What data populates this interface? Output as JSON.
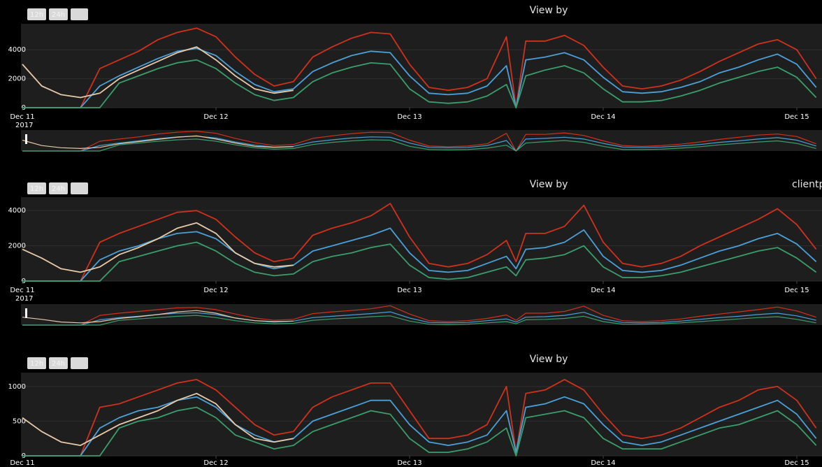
{
  "chart_data": [
    {
      "type": "line",
      "title": "View by",
      "range_buttons": [
        "12h",
        "24h"
      ],
      "year_label": "2017",
      "range_slider": true,
      "x": [
        11,
        11.1,
        11.2,
        11.3,
        11.4,
        11.5,
        11.6,
        11.7,
        11.8,
        11.9,
        12,
        12.1,
        12.2,
        12.3,
        12.4,
        12.5,
        12.6,
        12.7,
        12.8,
        12.9,
        13,
        13.1,
        13.2,
        13.3,
        13.4,
        13.5,
        13.55,
        13.6,
        13.7,
        13.8,
        13.9,
        14,
        14.1,
        14.2,
        14.3,
        14.4,
        14.5,
        14.6,
        14.7,
        14.8,
        14.9,
        15,
        15.1
      ],
      "xlim": [
        11,
        15.13
      ],
      "xticks": [
        {
          "value": 11,
          "label": "Dec 11"
        },
        {
          "value": 12,
          "label": "Dec 12"
        },
        {
          "value": 13,
          "label": "Dec 13"
        },
        {
          "value": 14,
          "label": "Dec 14"
        },
        {
          "value": 15,
          "label": "Dec 15"
        }
      ],
      "ylim": [
        0,
        5800
      ],
      "yticks": [
        0,
        2000,
        4000
      ],
      "series": [
        {
          "color": "#d0311c",
          "values": [
            0,
            0,
            0,
            0,
            2700,
            3300,
            3900,
            4700,
            5200,
            5500,
            4900,
            3500,
            2300,
            1500,
            1800,
            3500,
            4200,
            4800,
            5200,
            5100,
            3000,
            1400,
            1200,
            1400,
            2000,
            4900,
            0,
            4600,
            4600,
            5000,
            4300,
            2800,
            1500,
            1300,
            1500,
            1900,
            2500,
            3200,
            3800,
            4400,
            4700,
            4000,
            2000
          ]
        },
        {
          "color": "#4aa0d8",
          "values": [
            0,
            0,
            0,
            0,
            1500,
            2200,
            2800,
            3400,
            3900,
            4100,
            3600,
            2500,
            1600,
            1100,
            1300,
            2500,
            3100,
            3600,
            3900,
            3800,
            2200,
            1000,
            900,
            1000,
            1500,
            2900,
            0,
            3300,
            3500,
            3800,
            3300,
            2100,
            1100,
            1000,
            1100,
            1400,
            1800,
            2400,
            2800,
            3300,
            3700,
            3000,
            1400
          ]
        },
        {
          "color": "#3a9e6c",
          "values": [
            0,
            0,
            0,
            0,
            0,
            1700,
            2200,
            2700,
            3100,
            3300,
            2700,
            1700,
            900,
            500,
            700,
            1800,
            2400,
            2800,
            3100,
            3000,
            1300,
            400,
            300,
            400,
            800,
            1600,
            0,
            2200,
            2600,
            2900,
            2400,
            1300,
            400,
            400,
            500,
            800,
            1200,
            1700,
            2100,
            2500,
            2800,
            2100,
            700
          ]
        },
        {
          "color": "#e8c9a8",
          "values": [
            3000,
            1500,
            900,
            700,
            1000,
            2000,
            2600,
            3200,
            3800,
            4200,
            3300,
            2200,
            1300,
            1000,
            1200,
            null,
            null,
            null,
            null,
            null,
            null,
            null,
            null,
            null,
            null,
            null,
            null,
            null,
            null,
            null,
            null,
            null,
            null,
            null,
            null,
            null,
            null,
            null,
            null,
            null,
            null,
            null,
            null
          ]
        }
      ]
    },
    {
      "type": "line",
      "title": "View by",
      "annotation": "clientp",
      "range_buttons": [
        "12h",
        "24h"
      ],
      "year_label": "2017",
      "range_slider": true,
      "x": [
        11,
        11.1,
        11.2,
        11.3,
        11.4,
        11.5,
        11.6,
        11.7,
        11.8,
        11.9,
        12,
        12.1,
        12.2,
        12.3,
        12.4,
        12.5,
        12.6,
        12.7,
        12.8,
        12.9,
        13,
        13.1,
        13.2,
        13.3,
        13.4,
        13.5,
        13.55,
        13.6,
        13.7,
        13.8,
        13.9,
        14,
        14.1,
        14.2,
        14.3,
        14.4,
        14.5,
        14.6,
        14.7,
        14.8,
        14.9,
        15,
        15.1
      ],
      "xlim": [
        11,
        15.13
      ],
      "xticks": [
        {
          "value": 11,
          "label": "Dec 11"
        },
        {
          "value": 12,
          "label": "Dec 12"
        },
        {
          "value": 13,
          "label": "Dec 13"
        },
        {
          "value": 14,
          "label": "Dec 14"
        },
        {
          "value": 15,
          "label": "Dec 15"
        }
      ],
      "ylim": [
        0,
        4760
      ],
      "yticks": [
        0,
        2000,
        4000
      ],
      "series": [
        {
          "color": "#d0311c",
          "values": [
            0,
            0,
            0,
            0,
            2200,
            2700,
            3100,
            3500,
            3900,
            4000,
            3500,
            2500,
            1600,
            1100,
            1300,
            2600,
            3000,
            3300,
            3700,
            4400,
            2500,
            1000,
            800,
            1000,
            1500,
            2300,
            1100,
            2700,
            2700,
            3100,
            4300,
            2200,
            1000,
            800,
            1000,
            1400,
            2000,
            2500,
            3000,
            3500,
            4100,
            3200,
            1800
          ]
        },
        {
          "color": "#4aa0d8",
          "values": [
            0,
            0,
            0,
            0,
            1200,
            1700,
            2000,
            2400,
            2700,
            2800,
            2400,
            1600,
            1000,
            700,
            900,
            1700,
            2000,
            2300,
            2600,
            3000,
            1600,
            600,
            500,
            600,
            1000,
            1400,
            700,
            1800,
            1900,
            2200,
            2900,
            1400,
            600,
            500,
            600,
            900,
            1300,
            1700,
            2000,
            2400,
            2700,
            2100,
            1100
          ]
        },
        {
          "color": "#3a9e6c",
          "values": [
            0,
            0,
            0,
            0,
            0,
            1100,
            1400,
            1700,
            2000,
            2200,
            1700,
            1000,
            500,
            300,
            400,
            1100,
            1400,
            1600,
            1900,
            2100,
            900,
            200,
            100,
            200,
            500,
            800,
            300,
            1200,
            1300,
            1500,
            2000,
            800,
            200,
            200,
            300,
            500,
            800,
            1100,
            1400,
            1700,
            1900,
            1300,
            500
          ]
        },
        {
          "color": "#e8c9a8",
          "values": [
            1800,
            1300,
            700,
            500,
            800,
            1500,
            1900,
            2400,
            3000,
            3300,
            2700,
            1600,
            1000,
            800,
            900,
            null,
            null,
            null,
            null,
            null,
            null,
            null,
            null,
            null,
            null,
            null,
            null,
            null,
            null,
            null,
            null,
            null,
            null,
            null,
            null,
            null,
            null,
            null,
            null,
            null,
            null,
            null,
            null
          ]
        }
      ]
    },
    {
      "type": "line",
      "title": "View by",
      "range_buttons": [
        "12h",
        "24h"
      ],
      "range_slider": false,
      "x": [
        11,
        11.1,
        11.2,
        11.3,
        11.4,
        11.5,
        11.6,
        11.7,
        11.8,
        11.9,
        12,
        12.1,
        12.2,
        12.3,
        12.4,
        12.5,
        12.6,
        12.7,
        12.8,
        12.9,
        13,
        13.1,
        13.2,
        13.3,
        13.4,
        13.5,
        13.55,
        13.6,
        13.7,
        13.8,
        13.9,
        14,
        14.1,
        14.2,
        14.3,
        14.4,
        14.5,
        14.6,
        14.7,
        14.8,
        14.9,
        15,
        15.1
      ],
      "xlim": [
        11,
        15.13
      ],
      "xticks": [
        {
          "value": 11,
          "label": "Dec 11"
        },
        {
          "value": 12,
          "label": "Dec 12"
        },
        {
          "value": 13,
          "label": "Dec 13"
        },
        {
          "value": 14,
          "label": "Dec 14"
        },
        {
          "value": 15,
          "label": "Dec 15"
        }
      ],
      "ylim": [
        0,
        1200
      ],
      "yticks": [
        0,
        500,
        1000
      ],
      "series": [
        {
          "color": "#d0311c",
          "values": [
            0,
            0,
            0,
            0,
            700,
            750,
            850,
            950,
            1050,
            1100,
            950,
            700,
            450,
            300,
            350,
            700,
            850,
            950,
            1050,
            1050,
            650,
            250,
            250,
            300,
            450,
            1000,
            50,
            900,
            950,
            1100,
            950,
            600,
            300,
            250,
            300,
            400,
            550,
            700,
            800,
            950,
            1000,
            800,
            400
          ]
        },
        {
          "color": "#4aa0d8",
          "values": [
            0,
            0,
            0,
            0,
            400,
            550,
            650,
            700,
            800,
            850,
            700,
            450,
            300,
            200,
            250,
            500,
            600,
            700,
            800,
            800,
            450,
            200,
            150,
            200,
            300,
            650,
            50,
            700,
            750,
            850,
            750,
            450,
            200,
            150,
            200,
            300,
            400,
            500,
            600,
            700,
            800,
            600,
            250
          ]
        },
        {
          "color": "#3a9e6c",
          "values": [
            0,
            0,
            0,
            0,
            0,
            400,
            500,
            550,
            650,
            700,
            550,
            300,
            200,
            100,
            150,
            350,
            450,
            550,
            650,
            600,
            250,
            50,
            50,
            100,
            200,
            400,
            0,
            550,
            600,
            650,
            550,
            250,
            100,
            100,
            100,
            200,
            300,
            400,
            450,
            550,
            650,
            450,
            150
          ]
        },
        {
          "color": "#e8c9a8",
          "values": [
            550,
            350,
            200,
            150,
            300,
            450,
            550,
            650,
            800,
            900,
            750,
            450,
            250,
            200,
            250,
            null,
            null,
            null,
            null,
            null,
            null,
            null,
            null,
            null,
            null,
            null,
            null,
            null,
            null,
            null,
            null,
            null,
            null,
            null,
            null,
            null,
            null,
            null,
            null,
            null,
            null,
            null,
            null
          ]
        }
      ]
    }
  ]
}
